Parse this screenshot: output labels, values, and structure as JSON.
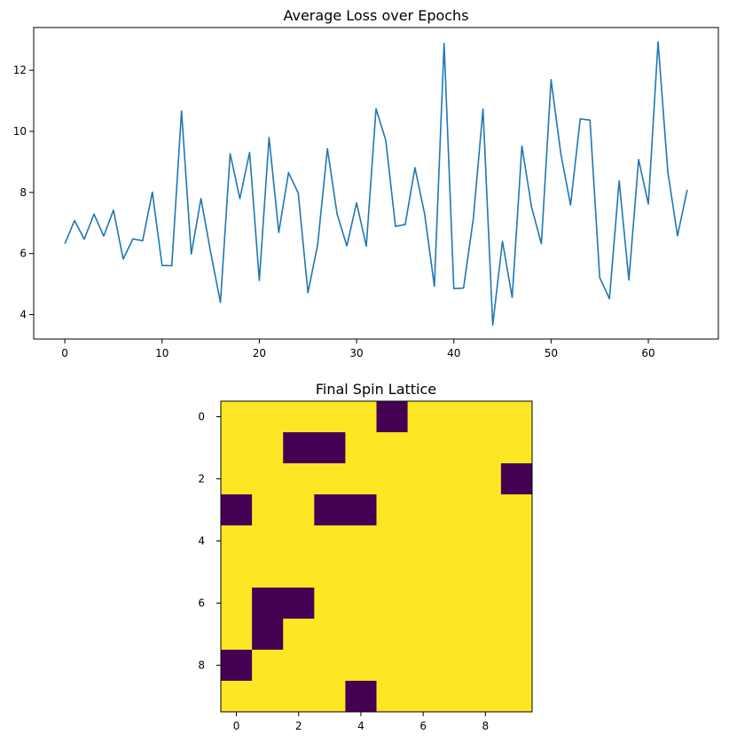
{
  "chart_data": [
    {
      "type": "line",
      "title": "Average Loss over Epochs",
      "xlabel": "",
      "ylabel": "",
      "xlim": [
        -3.2,
        67.2
      ],
      "ylim": [
        3.2,
        13.4
      ],
      "x_ticks": [
        0,
        10,
        20,
        30,
        40,
        50,
        60
      ],
      "y_ticks": [
        4,
        6,
        8,
        10,
        12
      ],
      "grid": false,
      "color": "#1f77b4",
      "x": [
        0,
        1,
        2,
        3,
        4,
        5,
        6,
        7,
        8,
        9,
        10,
        11,
        12,
        13,
        14,
        15,
        16,
        17,
        18,
        19,
        20,
        21,
        22,
        23,
        24,
        25,
        26,
        27,
        28,
        29,
        30,
        31,
        32,
        33,
        34,
        35,
        36,
        37,
        38,
        39,
        40,
        41,
        42,
        43,
        44,
        45,
        46,
        47,
        48,
        49,
        50,
        51,
        52,
        53,
        54,
        55,
        56,
        57,
        58,
        59,
        60,
        61,
        62,
        63,
        64
      ],
      "series": [
        {
          "values": [
            6.32,
            7.08,
            6.47,
            7.29,
            6.57,
            7.42,
            5.82,
            6.48,
            6.42,
            8.01,
            5.61,
            5.6,
            10.67,
            5.98,
            7.8,
            6.03,
            4.4,
            9.27,
            7.8,
            9.31,
            5.12,
            9.8,
            6.69,
            8.65,
            7.98,
            4.72,
            6.29,
            9.43,
            7.29,
            6.25,
            7.66,
            6.24,
            10.74,
            9.71,
            6.89,
            6.95,
            8.81,
            7.29,
            4.93,
            12.88,
            4.85,
            4.87,
            7.13,
            10.73,
            3.66,
            6.4,
            4.56,
            9.52,
            7.51,
            6.32,
            11.69,
            9.27,
            7.59,
            10.41,
            10.37,
            5.21,
            4.52,
            8.38,
            5.13,
            9.08,
            7.62,
            12.93,
            8.68,
            6.58,
            8.09
          ]
        }
      ]
    },
    {
      "type": "heatmap",
      "title": "Final Spin Lattice",
      "xlabel": "",
      "ylabel": "",
      "x_ticks": [
        0,
        2,
        4,
        6,
        8
      ],
      "y_ticks": [
        0,
        2,
        4,
        6,
        8
      ],
      "colormap": [
        "#440154",
        "#fde725"
      ],
      "values": [
        [
          1,
          1,
          1,
          1,
          1,
          -1,
          1,
          1,
          1,
          1
        ],
        [
          1,
          1,
          -1,
          -1,
          1,
          1,
          1,
          1,
          1,
          1
        ],
        [
          1,
          1,
          1,
          1,
          1,
          1,
          1,
          1,
          1,
          -1
        ],
        [
          -1,
          1,
          1,
          -1,
          -1,
          1,
          1,
          1,
          1,
          1
        ],
        [
          1,
          1,
          1,
          1,
          1,
          1,
          1,
          1,
          1,
          1
        ],
        [
          1,
          1,
          1,
          1,
          1,
          1,
          1,
          1,
          1,
          1
        ],
        [
          1,
          -1,
          -1,
          1,
          1,
          1,
          1,
          1,
          1,
          1
        ],
        [
          1,
          -1,
          1,
          1,
          1,
          1,
          1,
          1,
          1,
          1
        ],
        [
          -1,
          1,
          1,
          1,
          1,
          1,
          1,
          1,
          1,
          1
        ],
        [
          1,
          1,
          1,
          1,
          -1,
          1,
          1,
          1,
          1,
          1
        ]
      ]
    }
  ]
}
